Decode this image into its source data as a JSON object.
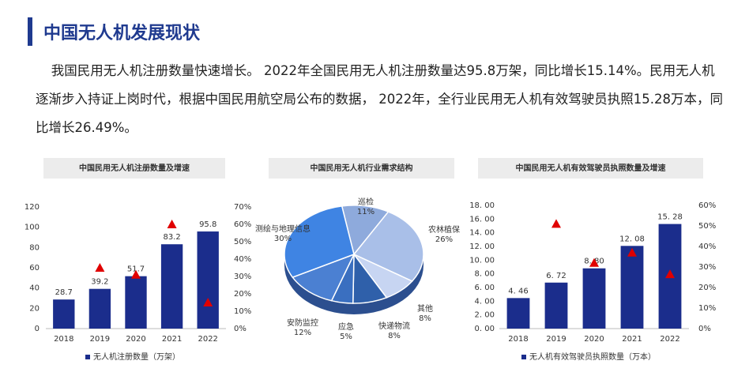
{
  "header": {
    "title": "中国无人机发展现状"
  },
  "paragraph": "我国民用无人机注册数量快速增长。 2022年全国民用无人机注册数量达95.8万架，同比增长15.14%。民用无人机逐渐步入持证上岗时代，根据中国民用航空局公布的数据， 2022年，全行业民用无人机有效驾驶员执照15.28万本，同比增长26.49%。",
  "chart_data": [
    {
      "type": "bar",
      "title": "中国民用无人机注册数量及增速",
      "categories": [
        "2018",
        "2019",
        "2020",
        "2021",
        "2022"
      ],
      "series": [
        {
          "name": "无人机注册数量（万架）",
          "color": "#1b2d8c",
          "values": [
            28.7,
            39.2,
            51.7,
            83.2,
            95.8
          ]
        },
        {
          "color": "#e00000",
          "axis": "y2",
          "marker": "triangle",
          "values": [
            null,
            35,
            31,
            60,
            15
          ]
        }
      ],
      "ylim": [
        0,
        120
      ],
      "yticks": [
        0,
        20,
        40,
        60,
        80,
        100,
        120
      ],
      "y2lim": [
        0,
        70
      ],
      "y2ticks": [
        {
          "value": 0,
          "label": "0%"
        },
        {
          "value": 10,
          "label": "10%"
        },
        {
          "value": 20,
          "label": "20%"
        },
        {
          "value": 30,
          "label": "30%"
        },
        {
          "value": 40,
          "label": "40%"
        },
        {
          "value": 50,
          "label": "50%"
        },
        {
          "value": 60,
          "label": "60%"
        },
        {
          "value": 70,
          "label": "70%"
        }
      ]
    },
    {
      "type": "pie",
      "title": "中国民用无人机行业需求结构",
      "categories": [
        "巡检",
        "农林植保",
        "其他",
        "快递物流",
        "应急",
        "安防监控",
        "测绘与地理信息"
      ],
      "values": [
        11,
        26,
        8,
        8,
        5,
        12,
        30
      ],
      "value_labels": [
        "11%",
        "26%",
        "8%",
        "8%",
        "5%",
        "12%",
        "30%"
      ],
      "colors": [
        "#8eaadc",
        "#a9bfe8",
        "#c7d5f2",
        "#2f60aa",
        "#3a6fc0",
        "#4b80d2",
        "#3f84e3"
      ]
    },
    {
      "type": "bar",
      "title": "中国民用无人机有效驾驶员执照数量及增速",
      "categories": [
        "2018",
        "2019",
        "2020",
        "2021",
        "2022"
      ],
      "series": [
        {
          "name": "无人机有效驾驶员执照数量（万本）",
          "color": "#1b2d8c",
          "values": [
            4.46,
            6.72,
            8.8,
            12.08,
            15.28
          ],
          "value_labels": [
            "4. 46",
            "6. 72",
            "8. 80",
            "12. 08",
            "15. 28"
          ]
        },
        {
          "color": "#e00000",
          "axis": "y2",
          "marker": "triangle",
          "values": [
            null,
            51,
            32,
            37,
            26.49
          ]
        }
      ],
      "ylim": [
        0,
        18
      ],
      "yticks": [
        {
          "value": 0,
          "label": "0. 00"
        },
        {
          "value": 2,
          "label": "2. 00"
        },
        {
          "value": 4,
          "label": "4. 00"
        },
        {
          "value": 6,
          "label": "6. 00"
        },
        {
          "value": 8,
          "label": "8. 00"
        },
        {
          "value": 10,
          "label": "10. 00"
        },
        {
          "value": 12,
          "label": "12. 00"
        },
        {
          "value": 14,
          "label": "14. 00"
        },
        {
          "value": 16,
          "label": "16. 00"
        },
        {
          "value": 18,
          "label": "18. 00"
        }
      ],
      "y2lim": [
        0,
        60
      ],
      "y2ticks": [
        {
          "value": 0,
          "label": "0%"
        },
        {
          "value": 10,
          "label": "10%"
        },
        {
          "value": 20,
          "label": "20%"
        },
        {
          "value": 30,
          "label": "30%"
        },
        {
          "value": 40,
          "label": "40%"
        },
        {
          "value": 50,
          "label": "50%"
        },
        {
          "value": 60,
          "label": "60%"
        }
      ]
    }
  ]
}
